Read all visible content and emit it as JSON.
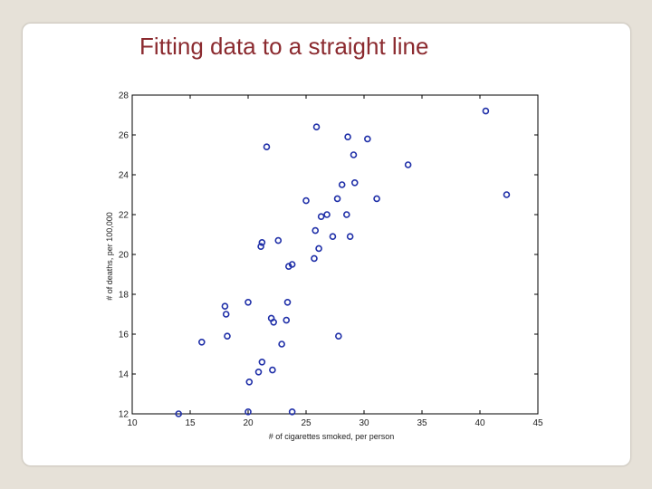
{
  "slide": {
    "title": "Fitting data to a straight line"
  },
  "chart_data": {
    "type": "scatter",
    "title": "",
    "xlabel": "# of cigarettes smoked, per person",
    "ylabel": "# of deaths, per 100,000",
    "xlim": [
      10,
      45
    ],
    "ylim": [
      12,
      28
    ],
    "xticks": [
      "10",
      "15",
      "20",
      "25",
      "30",
      "35",
      "40",
      "45"
    ],
    "yticks": [
      "12",
      "14",
      "16",
      "18",
      "20",
      "22",
      "24",
      "26",
      "28"
    ],
    "grid": false,
    "marker_color": "#1f2fa8",
    "points": [
      [
        14.0,
        12.0
      ],
      [
        16.0,
        15.6
      ],
      [
        18.0,
        17.4
      ],
      [
        18.1,
        17.0
      ],
      [
        18.2,
        15.9
      ],
      [
        20.0,
        17.6
      ],
      [
        20.0,
        12.1
      ],
      [
        20.1,
        13.6
      ],
      [
        20.9,
        14.1
      ],
      [
        21.2,
        14.6
      ],
      [
        21.1,
        20.4
      ],
      [
        21.2,
        20.6
      ],
      [
        21.6,
        25.4
      ],
      [
        22.0,
        16.8
      ],
      [
        22.2,
        16.6
      ],
      [
        22.1,
        14.2
      ],
      [
        22.6,
        20.7
      ],
      [
        22.9,
        15.5
      ],
      [
        23.3,
        16.7
      ],
      [
        23.4,
        17.6
      ],
      [
        23.5,
        19.4
      ],
      [
        23.8,
        19.5
      ],
      [
        23.8,
        12.1
      ],
      [
        25.0,
        22.7
      ],
      [
        25.7,
        19.8
      ],
      [
        25.8,
        21.2
      ],
      [
        25.9,
        26.4
      ],
      [
        26.1,
        20.3
      ],
      [
        26.3,
        21.9
      ],
      [
        26.8,
        22.0
      ],
      [
        27.3,
        20.9
      ],
      [
        27.7,
        22.8
      ],
      [
        27.8,
        15.9
      ],
      [
        28.1,
        23.5
      ],
      [
        28.5,
        22.0
      ],
      [
        28.6,
        25.9
      ],
      [
        28.8,
        20.9
      ],
      [
        29.1,
        25.0
      ],
      [
        29.2,
        23.6
      ],
      [
        30.3,
        25.8
      ],
      [
        31.1,
        22.8
      ],
      [
        33.8,
        24.5
      ],
      [
        40.5,
        27.2
      ],
      [
        42.3,
        23.0
      ]
    ]
  }
}
